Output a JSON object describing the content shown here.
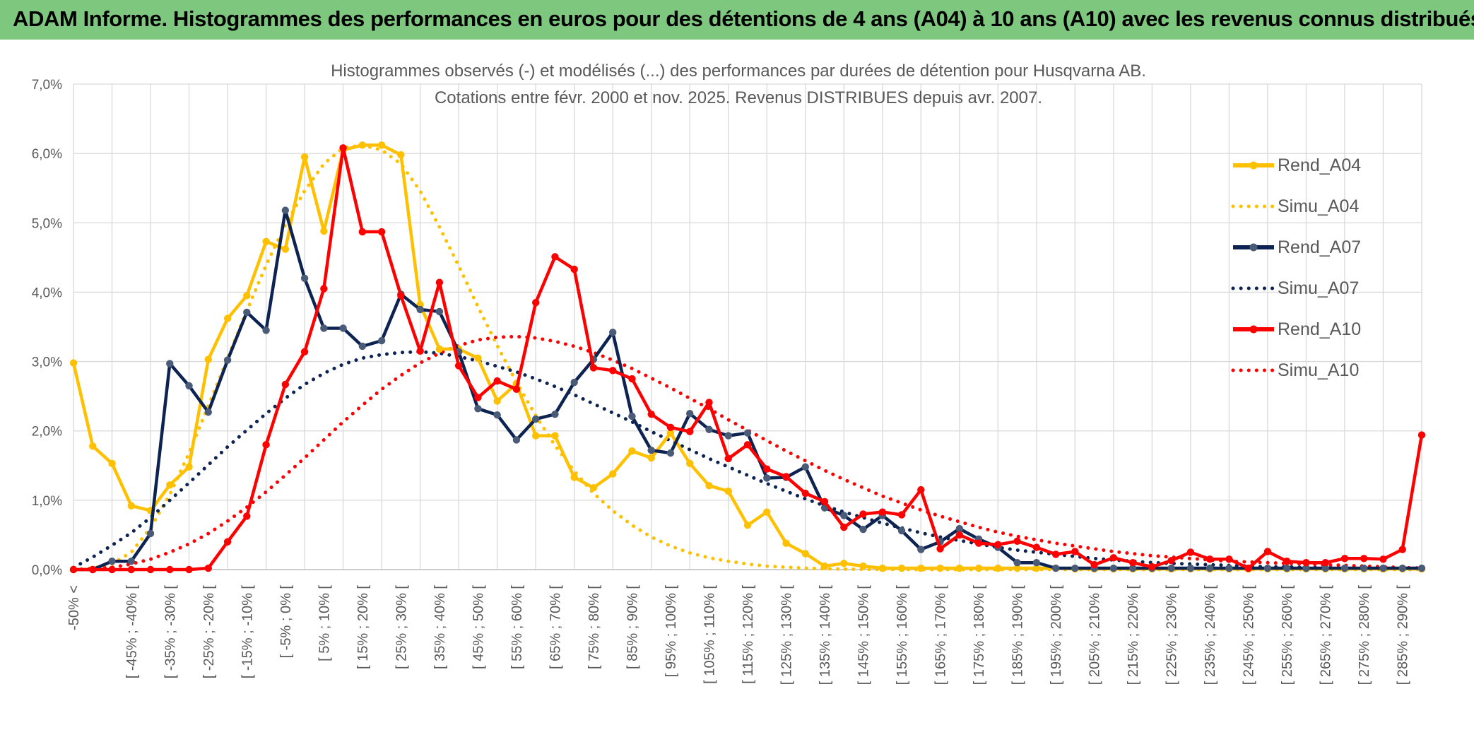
{
  "header": {
    "title": "ADAM Informe. Histogrammes des performances en euros pour des détentions de 4 ans (A04) à 10 ans (A10) avec les revenus connus distribués"
  },
  "colors": {
    "banner": "#7dc77f",
    "a04": "#ffc000",
    "a07": "#0d2352",
    "a07_marker": "#4a5b78",
    "a10": "#ff0000",
    "grid": "#d9d9d9",
    "axis_text": "#595959"
  },
  "chart_data": {
    "type": "line",
    "title": "Histogrammes observés (-) et modélisés (...) des performances par durées de détention pour Husqvarna AB.",
    "subtitle": "Cotations entre févr. 2000 et nov. 2025. Revenus DISTRIBUES depuis avr. 2007.",
    "xlabel": "",
    "ylabel": "",
    "ylim": [
      0,
      7
    ],
    "y_tick_labels": [
      "0,0%",
      "1,0%",
      "2,0%",
      "3,0%",
      "4,0%",
      "5,0%",
      "6,0%",
      "7,0%"
    ],
    "grid": true,
    "legend_position": "right",
    "x_tick_labels": [
      "-50% <",
      "[ -45% ; -40% [",
      "[ -35% ; -30% [",
      "[ -25% ; -20% [",
      "[ -15% ; -10% [",
      "[ -5% ; 0% [",
      "[ 5% ; 10% [",
      "[ 15% ; 20% [",
      "[ 25% ; 30% [",
      "[ 35% ; 40% [",
      "[ 45% ; 50% [",
      "[ 55% ; 60% [",
      "[ 65% ; 70% [",
      "[ 75% ; 80% [",
      "[ 85% ; 90% [",
      "[ 95% ; 100% [",
      "[ 105% ; 110% [",
      "[ 115% ; 120% [",
      "[ 125% ; 130% [",
      "[ 135% ; 140% [",
      "[ 145% ; 150% [",
      "[ 155% ; 160% [",
      "[ 165% ; 170% [",
      "[ 175% ; 180% [",
      "[ 185% ; 190% [",
      "[ 195% ; 200% [",
      "[ 205% ; 210% [",
      "[ 215% ; 220% [",
      "[ 225% ; 230% [",
      "[ 235% ; 240% [",
      "[ 245% ; 250% [",
      "[ 255% ; 260% [",
      "[ 265% ; 270% [",
      "[ 275% ; 280% [",
      "[ 285% ; 290% ["
    ],
    "series": [
      {
        "name": "Rend_A04",
        "style": "solid",
        "color": "#ffc000",
        "values": [
          2.98,
          1.78,
          1.53,
          0.92,
          0.85,
          1.22,
          1.48,
          3.03,
          3.62,
          3.95,
          4.73,
          4.62,
          5.95,
          4.88,
          6.05,
          6.12,
          6.12,
          5.98,
          3.82,
          3.18,
          3.18,
          3.05,
          2.43,
          2.68,
          1.93,
          1.93,
          1.33,
          1.18,
          1.38,
          1.71,
          1.61,
          1.97,
          1.53,
          1.21,
          1.13,
          0.64,
          0.83,
          0.38,
          0.23,
          0.05,
          0.09,
          0.05,
          0.02,
          0.02,
          0.02,
          0.02,
          0.02,
          0.02,
          0.02,
          0.02,
          0.02,
          0.02,
          0.01,
          0.01,
          0.01,
          0.01,
          0.01,
          0.01,
          0.01,
          0.01,
          0.01,
          0.01,
          0.01,
          0.01,
          0.01,
          0.01,
          0.01,
          0.01,
          0.01,
          0.01,
          0.01
        ]
      },
      {
        "name": "Simu_A04",
        "style": "dotted",
        "color": "#ffc000",
        "values": [
          0.0,
          0.02,
          0.08,
          0.25,
          0.6,
          1.08,
          1.68,
          2.36,
          3.05,
          3.73,
          4.39,
          4.97,
          5.46,
          5.85,
          6.08,
          6.12,
          6.05,
          5.85,
          5.46,
          4.94,
          4.38,
          3.79,
          3.23,
          2.7,
          2.22,
          1.79,
          1.42,
          1.1,
          0.85,
          0.64,
          0.47,
          0.34,
          0.24,
          0.17,
          0.12,
          0.08,
          0.05,
          0.035,
          0.02,
          0.012,
          0.007,
          0.004,
          0.002,
          0.001,
          0.0,
          0.0,
          0.0,
          0.0,
          0.0,
          0.0,
          0.0,
          0.0,
          0.0,
          0.0,
          0.0,
          0.0,
          0.0,
          0.0,
          0.0,
          0.0,
          0.0,
          0.0,
          0.0,
          0.0,
          0.0,
          0.0,
          0.0,
          0.0,
          0.0,
          0.0,
          0.0
        ]
      },
      {
        "name": "Rend_A07",
        "style": "solid",
        "color": "#0d2352",
        "values": [
          0.0,
          0.0,
          0.12,
          0.12,
          0.52,
          2.97,
          2.65,
          2.27,
          3.02,
          3.71,
          3.45,
          5.18,
          4.2,
          3.48,
          3.48,
          3.22,
          3.3,
          3.97,
          3.75,
          3.72,
          3.14,
          2.32,
          2.23,
          1.87,
          2.17,
          2.24,
          2.7,
          3.03,
          3.42,
          2.21,
          1.72,
          1.68,
          2.25,
          2.02,
          1.93,
          1.97,
          1.32,
          1.33,
          1.48,
          0.89,
          0.78,
          0.58,
          0.78,
          0.56,
          0.29,
          0.4,
          0.59,
          0.44,
          0.32,
          0.1,
          0.1,
          0.02,
          0.02,
          0.02,
          0.02,
          0.02,
          0.02,
          0.02,
          0.02,
          0.02,
          0.02,
          0.02,
          0.02,
          0.02,
          0.02,
          0.02,
          0.02,
          0.02,
          0.02,
          0.02,
          0.02
        ]
      },
      {
        "name": "Simu_A07",
        "style": "dotted",
        "color": "#0d2352",
        "values": [
          0.03,
          0.18,
          0.35,
          0.53,
          0.75,
          1.0,
          1.25,
          1.51,
          1.77,
          2.01,
          2.25,
          2.47,
          2.67,
          2.83,
          2.96,
          3.05,
          3.1,
          3.13,
          3.14,
          3.12,
          3.07,
          3.01,
          2.93,
          2.85,
          2.75,
          2.64,
          2.52,
          2.39,
          2.26,
          2.13,
          1.99,
          1.86,
          1.73,
          1.6,
          1.48,
          1.36,
          1.24,
          1.13,
          1.02,
          0.92,
          0.83,
          0.75,
          0.67,
          0.6,
          0.53,
          0.47,
          0.42,
          0.37,
          0.32,
          0.28,
          0.25,
          0.22,
          0.19,
          0.16,
          0.14,
          0.12,
          0.1,
          0.09,
          0.08,
          0.07,
          0.06,
          0.05,
          0.04,
          0.04,
          0.03,
          0.03,
          0.02,
          0.02,
          0.02,
          0.01,
          0.01
        ]
      },
      {
        "name": "Rend_A10",
        "style": "solid",
        "color": "#ff0000",
        "values": [
          0.0,
          0.0,
          0.0,
          0.0,
          0.0,
          0.0,
          0.0,
          0.02,
          0.4,
          0.77,
          1.8,
          2.67,
          3.14,
          4.05,
          6.08,
          4.87,
          4.87,
          3.95,
          3.15,
          4.14,
          2.94,
          2.48,
          2.72,
          2.6,
          3.85,
          4.51,
          4.33,
          2.91,
          2.87,
          2.75,
          2.24,
          2.05,
          1.99,
          2.41,
          1.6,
          1.8,
          1.45,
          1.34,
          1.1,
          0.98,
          0.61,
          0.8,
          0.83,
          0.79,
          1.15,
          0.3,
          0.5,
          0.38,
          0.36,
          0.41,
          0.32,
          0.22,
          0.26,
          0.07,
          0.17,
          0.1,
          0.04,
          0.13,
          0.25,
          0.15,
          0.15,
          0.02,
          0.26,
          0.12,
          0.1,
          0.1,
          0.16,
          0.16,
          0.15,
          0.29,
          1.94
        ]
      },
      {
        "name": "Simu_A10",
        "style": "dotted",
        "color": "#ff0000",
        "values": [
          0.0,
          0.01,
          0.03,
          0.08,
          0.15,
          0.25,
          0.37,
          0.52,
          0.7,
          0.9,
          1.12,
          1.36,
          1.61,
          1.87,
          2.13,
          2.37,
          2.6,
          2.8,
          2.98,
          3.12,
          3.23,
          3.31,
          3.35,
          3.36,
          3.34,
          3.29,
          3.22,
          3.13,
          3.02,
          2.9,
          2.76,
          2.62,
          2.47,
          2.32,
          2.16,
          2.01,
          1.86,
          1.71,
          1.57,
          1.43,
          1.3,
          1.18,
          1.06,
          0.96,
          0.86,
          0.77,
          0.69,
          0.61,
          0.54,
          0.48,
          0.43,
          0.38,
          0.34,
          0.3,
          0.26,
          0.23,
          0.2,
          0.18,
          0.16,
          0.14,
          0.12,
          0.11,
          0.1,
          0.09,
          0.08,
          0.07,
          0.06,
          0.05,
          0.04,
          0.03,
          0.02
        ]
      }
    ]
  }
}
